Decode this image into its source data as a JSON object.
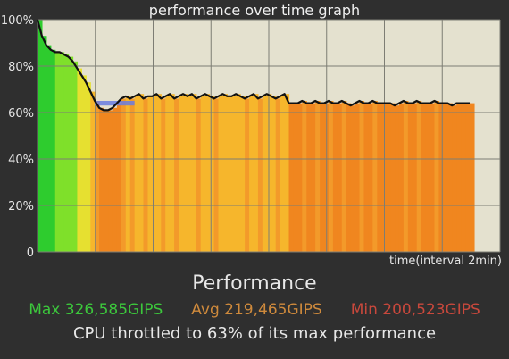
{
  "chart_data": {
    "type": "line",
    "title": "performance over time graph",
    "xlabel": "time(interval 2min)",
    "ylabel": "",
    "ylim": [
      0,
      100
    ],
    "y_ticks": [
      "0",
      "20%",
      "40%",
      "60%",
      "80%",
      "100%"
    ],
    "grid": true,
    "series": [
      {
        "values": [
          100,
          93,
          89,
          87,
          86,
          86,
          85,
          84,
          82,
          79,
          76,
          73,
          69,
          65,
          62,
          61,
          61,
          62,
          64,
          66,
          67,
          66,
          67,
          68,
          66,
          67,
          67,
          68,
          66,
          67,
          68,
          66,
          67,
          68,
          67,
          68,
          66,
          67,
          68,
          67,
          66,
          67,
          68,
          67,
          67,
          68,
          67,
          66,
          67,
          68,
          66,
          67,
          68,
          67,
          66,
          67,
          68,
          64,
          64,
          64,
          65,
          64,
          64,
          65,
          64,
          64,
          65,
          64,
          64,
          65,
          64,
          63,
          64,
          65,
          64,
          64,
          65,
          64,
          64,
          64,
          64,
          63,
          64,
          65,
          64,
          64,
          65,
          64,
          64,
          64,
          65,
          64,
          64,
          64,
          63,
          64,
          64,
          64,
          64
        ]
      }
    ],
    "reference_band": [
      63,
      65
    ]
  },
  "stats": {
    "heading": "Performance",
    "max_label": "Max 326,585GIPS",
    "avg_label": "Avg 219,465GIPS",
    "min_label": "Min 200,523GIPS",
    "max_color": "#3cc83c",
    "avg_color": "#cf8a3c",
    "min_color": "#c8483c",
    "throttle_text": "CPU throttled to 63% of its max performance"
  },
  "colors": {
    "plot_bg": "#e4e1cf",
    "line": "#111111",
    "band": "#6a7de0"
  }
}
